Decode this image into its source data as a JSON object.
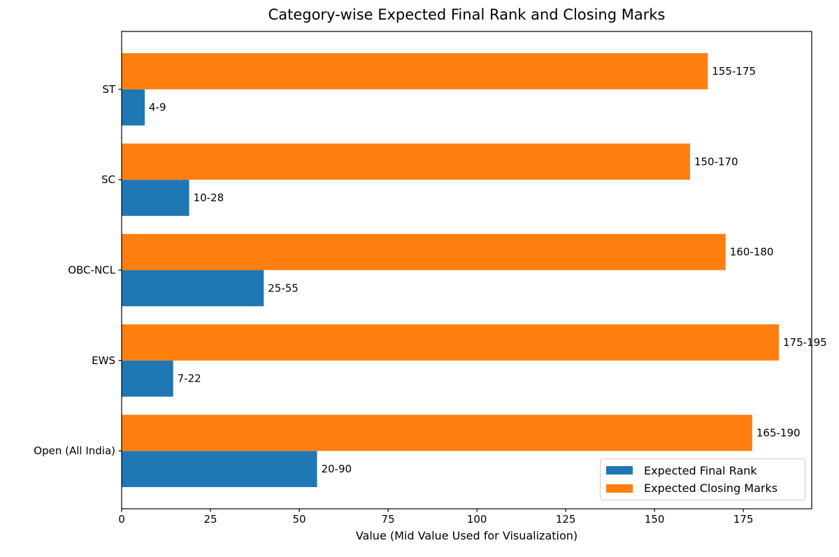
{
  "chart_data": {
    "type": "bar",
    "orientation": "horizontal",
    "title": "Category-wise Expected Final Rank and Closing Marks",
    "xlabel": "Value (Mid Value Used for Visualization)",
    "categories": [
      "ST",
      "SC",
      "OBC-NCL",
      "EWS",
      "Open (All India)"
    ],
    "series": [
      {
        "name": "Expected Final Rank",
        "color": "#1f77b4",
        "values": [
          6.5,
          19,
          40,
          14.5,
          55
        ],
        "labels": [
          "4-9",
          "10-28",
          "25-55",
          "7-22",
          "20-90"
        ]
      },
      {
        "name": "Expected Closing Marks",
        "color": "#ff7f0e",
        "values": [
          165,
          160,
          170,
          185,
          177.5
        ],
        "labels": [
          "155-175",
          "150-170",
          "160-180",
          "175-195",
          "165-190"
        ]
      }
    ],
    "xlim": [
      0,
      194.25
    ],
    "xticks": [
      0,
      25,
      50,
      75,
      100,
      125,
      150,
      175
    ],
    "legend_position": "lower right",
    "grid": false,
    "colors": {
      "background": "#ffffff",
      "text": "#000000",
      "spine": "#000000",
      "legend_border": "#cccccc"
    }
  }
}
